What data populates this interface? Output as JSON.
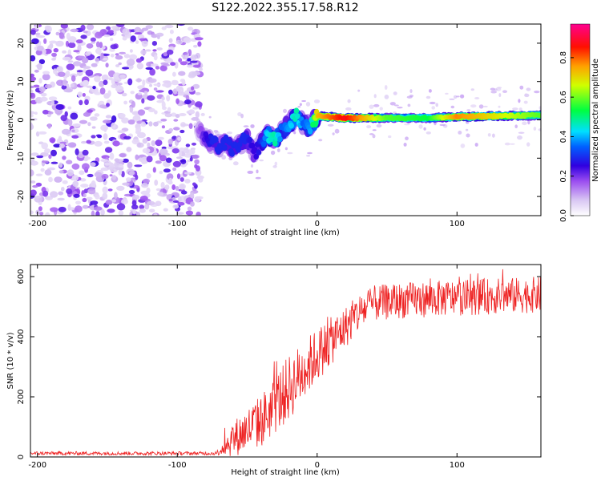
{
  "title": "S122.2022.355.17.58.R12",
  "colors": {
    "snr_line": "#ee2222",
    "background": "#ffffff",
    "colormap": [
      "#d9c7f3",
      "#9b4df0",
      "#5a00e0",
      "#0010ff",
      "#00d8ff",
      "#00ff40",
      "#ffff00",
      "#ff8000",
      "#ff0000",
      "#ff0090"
    ]
  },
  "chart_data": [
    {
      "type": "heatmap",
      "xlabel": "Height of straight line (km)",
      "ylabel": "Frequency (Hz)",
      "xlim": [
        -205,
        160
      ],
      "ylim": [
        -25,
        25
      ],
      "x_ticks": [
        "-200",
        "-100",
        "0",
        "100"
      ],
      "y_ticks": [
        "-20",
        "-10",
        "0",
        "10",
        "20"
      ],
      "colorbar": {
        "label": "Normalized spectral amplitude",
        "range": [
          0,
          0.97
        ],
        "ticks": [
          "0.0",
          "0.2",
          "0.4",
          "0.6",
          "0.8"
        ]
      },
      "noise_region_x": [
        -205,
        -83
      ],
      "ridge": {
        "x": [
          -85,
          -80,
          -75,
          -70,
          -65,
          -60,
          -55,
          -50,
          -45,
          -40,
          -35,
          -30,
          -25,
          -20,
          -15,
          -10,
          -5,
          0,
          20,
          50,
          80,
          100,
          130,
          160
        ],
        "freq": [
          -2,
          -5,
          -6,
          -7,
          -6,
          -8,
          -6,
          -5,
          -9,
          -6,
          -4,
          -5,
          -3,
          -1,
          1,
          -1,
          -2,
          1,
          0.5,
          0.5,
          0.5,
          0.8,
          1,
          1.2
        ],
        "amplitude": [
          0.15,
          0.25,
          0.3,
          0.3,
          0.3,
          0.3,
          0.3,
          0.3,
          0.25,
          0.3,
          0.45,
          0.5,
          0.35,
          0.4,
          0.5,
          0.35,
          0.4,
          0.75,
          0.9,
          0.6,
          0.55,
          0.8,
          0.7,
          0.6
        ]
      }
    },
    {
      "type": "line",
      "xlabel": "Height of straight line (km)",
      "ylabel": "SNR (10 * v/v)",
      "xlim": [
        -205,
        160
      ],
      "ylim": [
        0,
        640
      ],
      "x_ticks": [
        "-200",
        "-100",
        "0",
        "100"
      ],
      "y_ticks": [
        "0",
        "200",
        "400",
        "600"
      ],
      "trend": {
        "x": [
          -205,
          -100,
          -72,
          -60,
          -40,
          -20,
          0,
          20,
          30,
          40,
          60,
          80,
          100,
          130,
          160
        ],
        "y": [
          12,
          12,
          12,
          60,
          120,
          230,
          340,
          430,
          480,
          510,
          520,
          525,
          530,
          535,
          540
        ]
      },
      "noise_amplitude": {
        "x": [
          -205,
          -72,
          -60,
          -40,
          -20,
          0,
          20,
          40,
          100,
          160
        ],
        "y": [
          6,
          6,
          60,
          90,
          110,
          90,
          70,
          60,
          60,
          60
        ]
      }
    }
  ]
}
